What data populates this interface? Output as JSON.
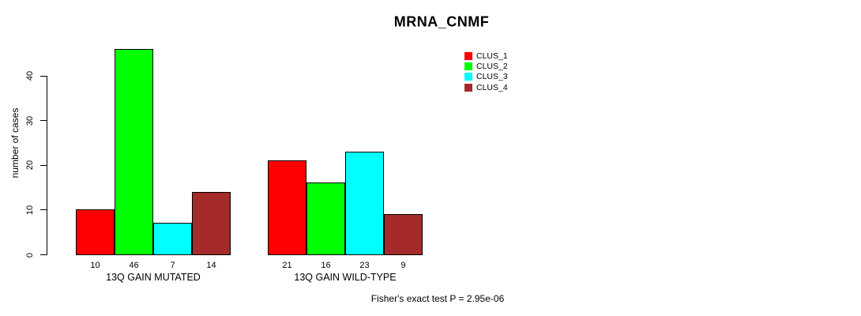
{
  "chart_data": {
    "type": "bar",
    "title": "MRNA_CNMF",
    "ylabel": "number of cases",
    "xlabel": "",
    "ylim": [
      0,
      46
    ],
    "yticks": [
      0,
      10,
      20,
      30,
      40
    ],
    "grid": false,
    "legend_position": "top-right",
    "categories": [
      "13Q GAIN MUTATED",
      "13Q GAIN WILD-TYPE"
    ],
    "series": [
      {
        "name": "CLUS_1",
        "color": "#ff0000",
        "values": [
          10,
          21
        ]
      },
      {
        "name": "CLUS_2",
        "color": "#00ff00",
        "values": [
          46,
          16
        ]
      },
      {
        "name": "CLUS_3",
        "color": "#00ffff",
        "values": [
          7,
          23
        ]
      },
      {
        "name": "CLUS_4",
        "color": "#a52a2a",
        "values": [
          14,
          9
        ]
      }
    ],
    "bar_value_labels_shown": true,
    "annotation": "Fisher's exact test P = 2.95e-06"
  }
}
